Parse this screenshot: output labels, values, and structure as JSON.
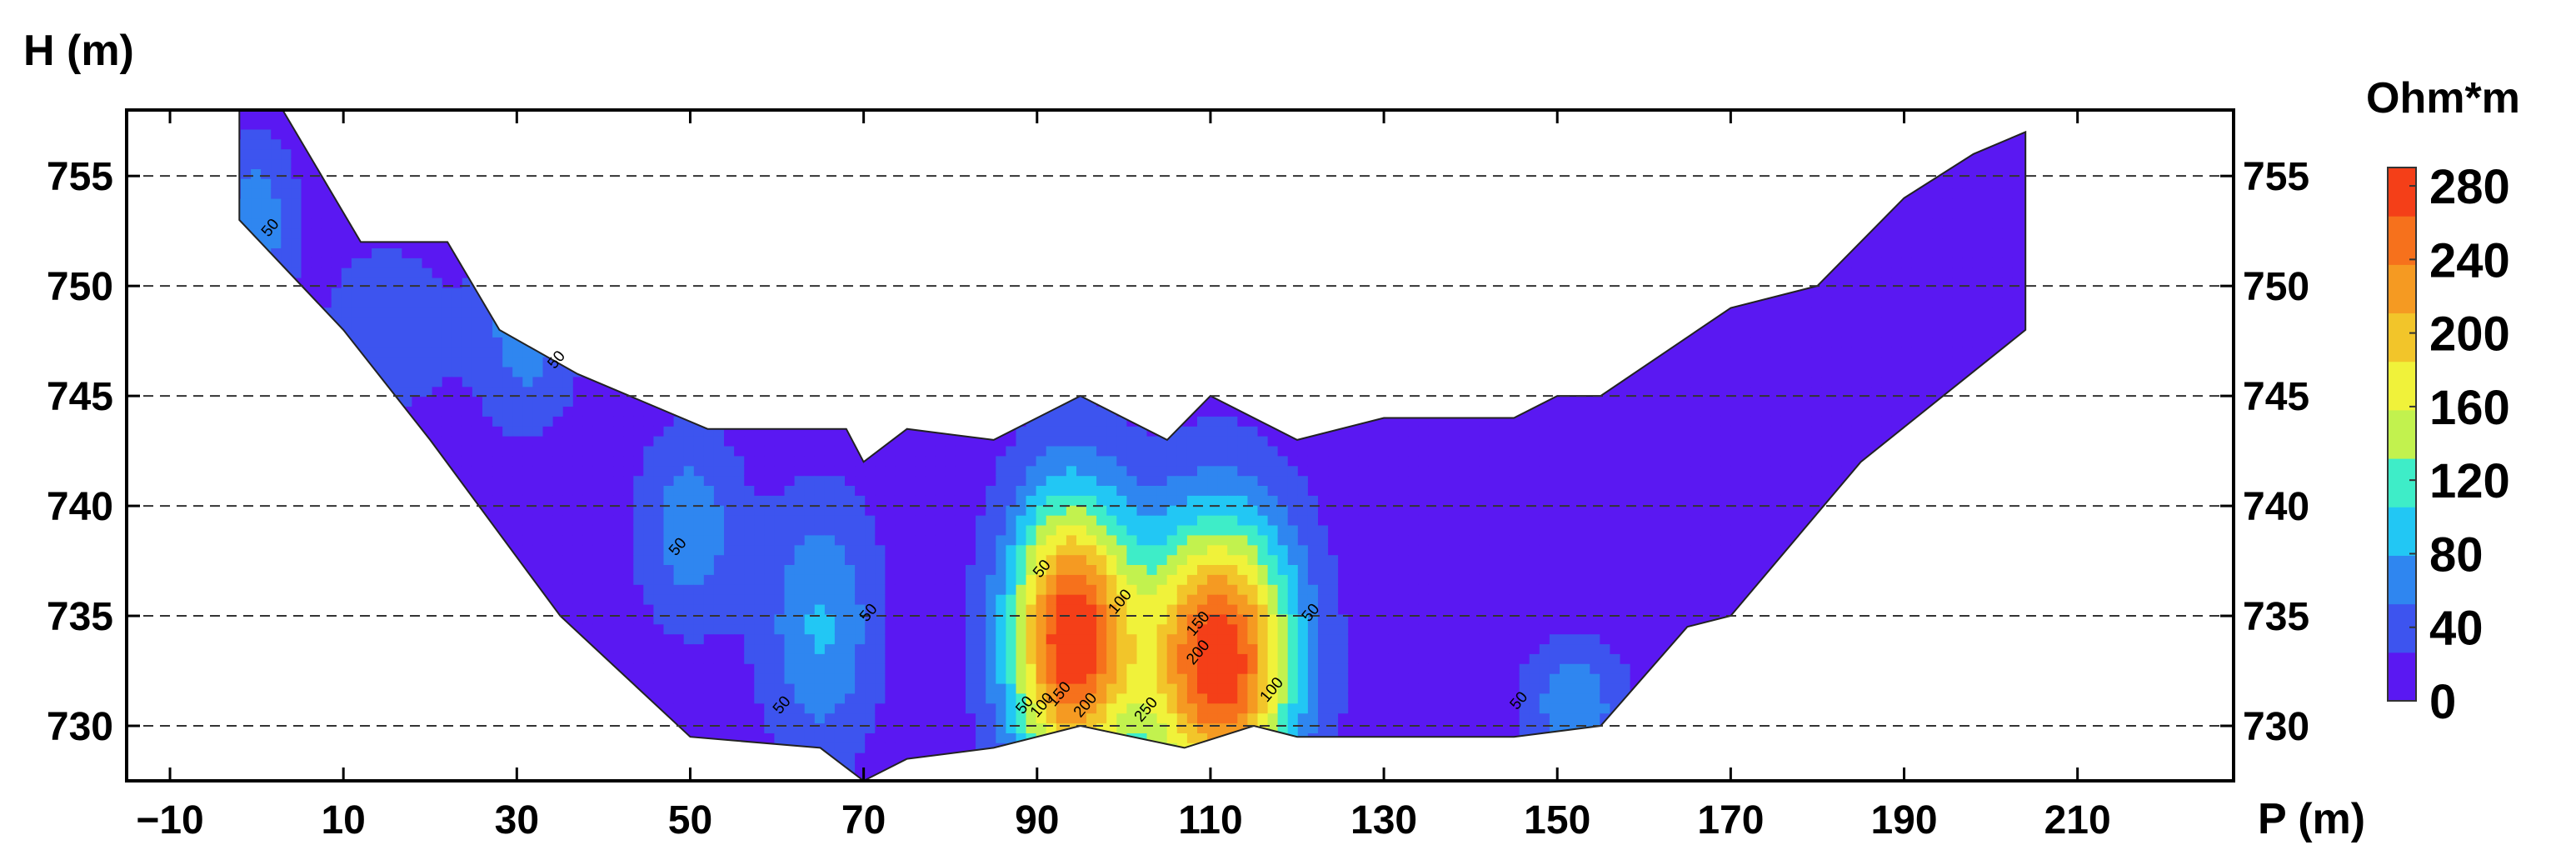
{
  "chart_data": {
    "type": "heatmap",
    "title": "",
    "xlabel": "P (m)",
    "ylabel": "H (m)",
    "xlim": [
      -15,
      228
    ],
    "ylim": [
      727.5,
      758
    ],
    "x_ticks": [
      -10,
      10,
      30,
      50,
      70,
      90,
      110,
      130,
      150,
      170,
      190,
      210
    ],
    "x_tick_labels": [
      "−10",
      "10",
      "30",
      "50",
      "70",
      "90",
      "110",
      "130",
      "150",
      "170",
      "190",
      "210"
    ],
    "y_ticks": [
      730,
      735,
      740,
      745,
      750,
      755
    ],
    "y_tick_labels": [
      "730",
      "735",
      "740",
      "745",
      "750",
      "755"
    ],
    "grid": "horizontal dashed",
    "colorbar": {
      "title": "Ohm*m",
      "min": 0,
      "max": 290,
      "ticks": [
        0,
        40,
        80,
        120,
        160,
        200,
        240,
        280
      ],
      "tick_labels": [
        "0",
        "40",
        "80",
        "120",
        "160",
        "200",
        "240",
        "280"
      ],
      "colors": [
        "#5a18f2",
        "#3d54ef",
        "#2f86f0",
        "#22c7f4",
        "#3eedc8",
        "#c2f24e",
        "#f0f23a",
        "#f2c52a",
        "#f59a22",
        "#f6711c",
        "#f43f18"
      ]
    },
    "section_top": [
      [
        -2,
        758
      ],
      [
        3,
        758
      ],
      [
        12,
        752
      ],
      [
        22,
        752
      ],
      [
        28,
        748
      ],
      [
        37,
        746
      ],
      [
        43,
        745
      ],
      [
        52,
        743.5
      ],
      [
        68,
        743.5
      ],
      [
        70,
        742
      ],
      [
        75,
        743.5
      ],
      [
        85,
        743
      ],
      [
        95,
        745
      ],
      [
        105,
        743
      ],
      [
        110,
        745
      ],
      [
        120,
        743
      ],
      [
        130,
        744
      ],
      [
        145,
        744
      ],
      [
        150,
        745
      ],
      [
        155,
        745
      ],
      [
        170,
        749
      ],
      [
        180,
        750
      ],
      [
        190,
        754
      ],
      [
        198,
        756
      ],
      [
        204,
        757
      ]
    ],
    "section_bottom": [
      [
        204,
        748
      ],
      [
        185,
        742
      ],
      [
        170,
        735
      ],
      [
        165,
        734.5
      ],
      [
        155,
        730
      ],
      [
        145,
        729.5
      ],
      [
        120,
        729.5
      ],
      [
        115,
        730
      ],
      [
        107,
        729
      ],
      [
        95,
        730
      ],
      [
        85,
        729
      ],
      [
        75,
        728.5
      ],
      [
        70,
        727.5
      ],
      [
        65,
        729
      ],
      [
        50,
        729.5
      ],
      [
        35,
        735
      ],
      [
        20,
        743
      ],
      [
        10,
        748
      ],
      [
        -2,
        753
      ]
    ],
    "anomalies": [
      {
        "x": 94,
        "y": 734,
        "rx": 5,
        "ry": 4.5,
        "peak": 280
      },
      {
        "x": 111,
        "y": 733,
        "rx": 6,
        "ry": 4.5,
        "peak": 280
      },
      {
        "x": 65,
        "y": 734.5,
        "rx": 4.5,
        "ry": 4,
        "peak": 70
      },
      {
        "x": 50,
        "y": 739,
        "rx": 4,
        "ry": 3,
        "peak": 60
      },
      {
        "x": 31,
        "y": 748,
        "rx": 4,
        "ry": 3,
        "peak": 55
      },
      {
        "x": 0,
        "y": 753,
        "rx": 3,
        "ry": 2.5,
        "peak": 60
      },
      {
        "x": 152,
        "y": 731,
        "rx": 4,
        "ry": 2,
        "peak": 60
      },
      {
        "x": 15,
        "y": 748,
        "rx": 5,
        "ry": 2.5,
        "peak": 40
      }
    ],
    "contour_labels": [
      {
        "text": "50",
        "x": 2,
        "y": 752.5
      },
      {
        "text": "50",
        "x": 35,
        "y": 746.5
      },
      {
        "text": "50",
        "x": 49,
        "y": 738
      },
      {
        "text": "50",
        "x": 71,
        "y": 735
      },
      {
        "text": "50",
        "x": 61,
        "y": 730.8
      },
      {
        "text": "50",
        "x": 91,
        "y": 737
      },
      {
        "text": "100",
        "x": 100,
        "y": 735.5
      },
      {
        "text": "150",
        "x": 109,
        "y": 734.5
      },
      {
        "text": "200",
        "x": 109,
        "y": 733.2
      },
      {
        "text": "250",
        "x": 103,
        "y": 730.6
      },
      {
        "text": "50",
        "x": 89,
        "y": 730.8
      },
      {
        "text": "100",
        "x": 91,
        "y": 730.8
      },
      {
        "text": "150",
        "x": 93,
        "y": 731.3
      },
      {
        "text": "200",
        "x": 96,
        "y": 730.8
      },
      {
        "text": "100",
        "x": 117.5,
        "y": 731.5
      },
      {
        "text": "50",
        "x": 122,
        "y": 735
      },
      {
        "text": "50",
        "x": 146,
        "y": 731
      }
    ]
  }
}
